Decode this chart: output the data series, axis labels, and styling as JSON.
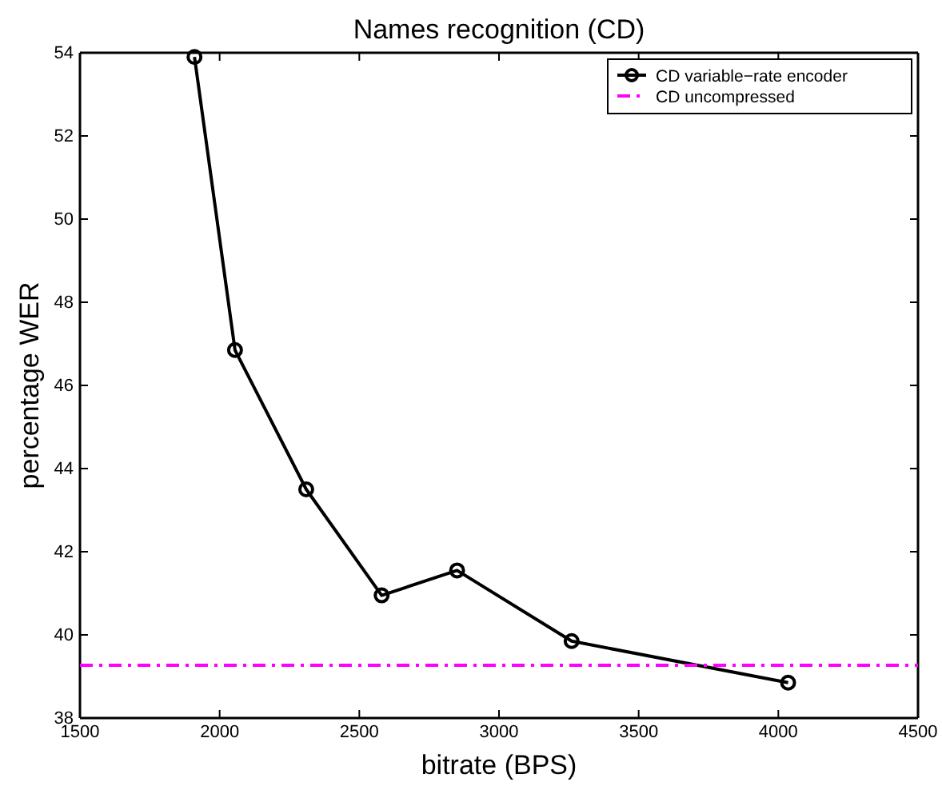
{
  "chart_data": {
    "type": "line",
    "title": "Names recognition (CD)",
    "xlabel": "bitrate (BPS)",
    "ylabel": "percentage WER",
    "xlim": [
      1500,
      4500
    ],
    "xticks": [
      1500,
      2000,
      2500,
      3000,
      3500,
      4000,
      4500
    ],
    "ylim": [
      38,
      54
    ],
    "yticks": [
      38,
      40,
      42,
      44,
      46,
      48,
      50,
      52,
      54
    ],
    "grid": false,
    "legend": "top right",
    "series": [
      {
        "name": "CD variable−rate encoder",
        "color": "#000000",
        "marker": "circle",
        "line_style": "solid",
        "x": [
          1910,
          2055,
          2310,
          2580,
          2850,
          3260,
          4035
        ],
        "values": [
          53.9,
          46.85,
          43.5,
          40.95,
          41.55,
          39.85,
          38.85
        ]
      },
      {
        "name": "CD uncompressed",
        "color": "#ff00ff",
        "marker": "none",
        "line_style": "dashed",
        "x": [
          1500,
          4500
        ],
        "values": [
          39.27,
          39.27
        ]
      }
    ]
  }
}
